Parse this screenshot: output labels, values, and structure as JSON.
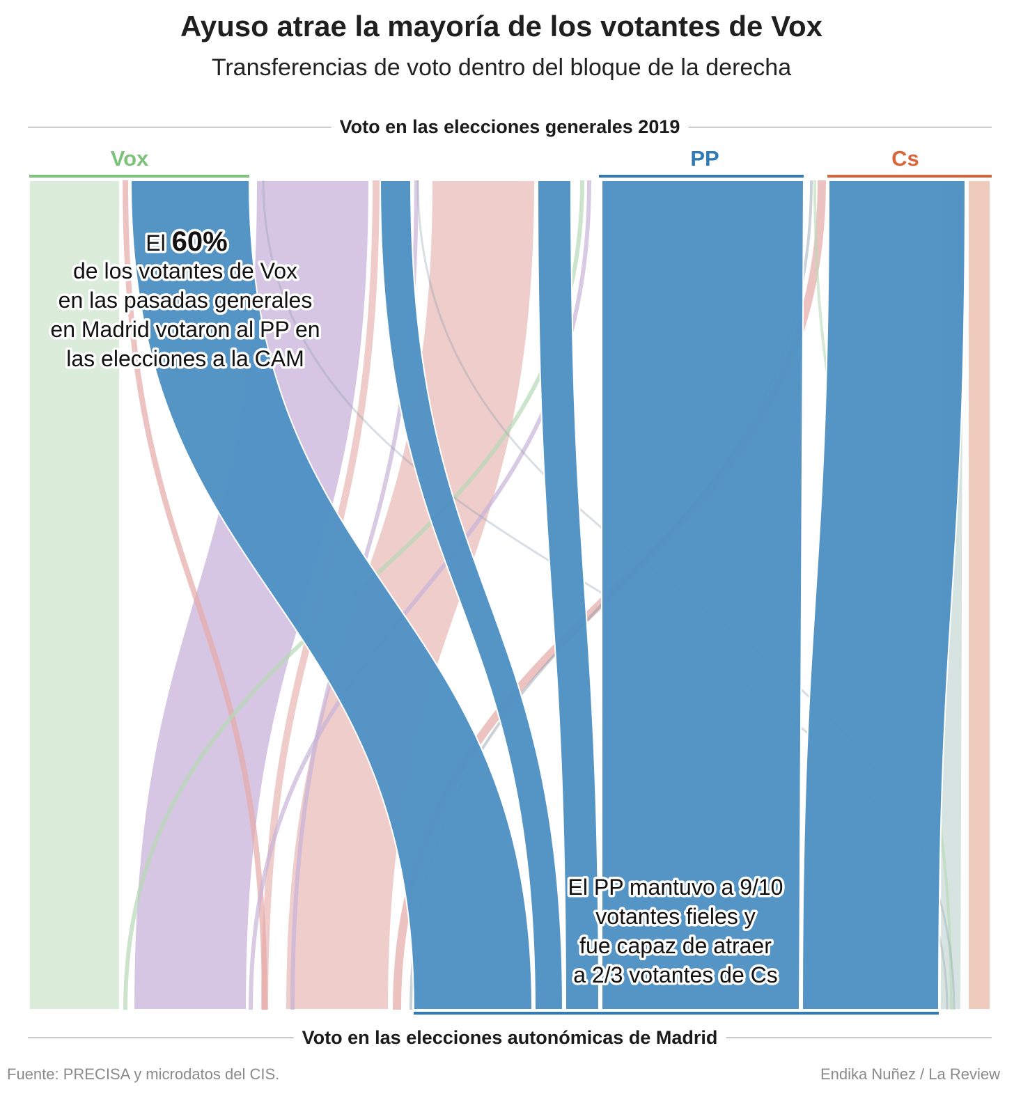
{
  "title": "Ayuso atrae la mayoría de los votantes de Vox",
  "subtitle": "Transferencias de voto dentro del bloque de la derecha",
  "top_axis_label": "Voto en las elecciones generales 2019",
  "bottom_axis_label": "Voto en las elecciones autonómicas de Madrid",
  "source": "Fuente: PRECISA y microdatos del CIS.",
  "credit": "Endika Nuñez / La Review",
  "colors": {
    "vox": "#7cc27a",
    "pp": "#2e7bb8",
    "cs": "#d9653b",
    "to_vox": "#dcecda",
    "to_pp": "#4f92c4",
    "to_mas_madrid": "#d6c6e3",
    "to_psoe": "#efcdcb",
    "to_cs": "#efcbbd"
  },
  "annotations": {
    "vox_note": {
      "prefix": "El",
      "big": "60%",
      "lines": [
        "de los votantes de Vox",
        "en las pasadas generales",
        "en Madrid  votaron al PP en",
        "las elecciones a la CAM"
      ]
    },
    "pp_note": {
      "lines": [
        "El PP mantuvo a 9/10",
        "votantes fieles y",
        "fue capaz de atraer",
        "a 2/3 votantes de Cs"
      ]
    }
  },
  "chart_data": {
    "type": "sankey",
    "source_nodes": [
      "Vox",
      "PP",
      "Cs"
    ],
    "flows": [
      {
        "from": "Vox",
        "to": "Vox",
        "share": 0.4
      },
      {
        "from": "Vox",
        "to": "PP",
        "share": 0.6
      },
      {
        "from": "PP",
        "to": "PP",
        "share": 0.9
      },
      {
        "from": "Cs",
        "to": "PP",
        "share": 0.67
      }
    ]
  }
}
